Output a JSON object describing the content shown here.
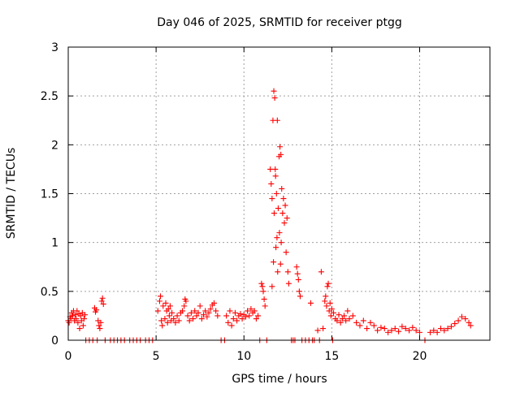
{
  "chart_data": {
    "type": "scatter",
    "title": "Day 046 of 2025, SRMTID for receiver ptgg",
    "xlabel": "GPS time / hours",
    "ylabel": "SRMTID / TECUs",
    "xlim": [
      0,
      24
    ],
    "ylim": [
      0,
      3
    ],
    "xticks": [
      0,
      5,
      10,
      15,
      20
    ],
    "yticks": [
      0,
      0.5,
      1,
      1.5,
      2,
      2.5,
      3
    ],
    "ytick_labels": [
      "0",
      "0.5",
      "1",
      "1.5",
      "2",
      "2.5",
      "3"
    ],
    "grid": true,
    "marker": "+",
    "series": [
      {
        "name": "SRMTID",
        "color": "#ff0000",
        "points": [
          [
            0.0,
            0.2
          ],
          [
            0.05,
            0.18
          ],
          [
            0.1,
            0.24
          ],
          [
            0.15,
            0.22
          ],
          [
            0.2,
            0.28
          ],
          [
            0.25,
            0.25
          ],
          [
            0.3,
            0.3
          ],
          [
            0.35,
            0.2
          ],
          [
            0.4,
            0.26
          ],
          [
            0.45,
            0.22
          ],
          [
            0.5,
            0.3
          ],
          [
            0.55,
            0.18
          ],
          [
            0.6,
            0.27
          ],
          [
            0.65,
            0.12
          ],
          [
            0.7,
            0.25
          ],
          [
            0.75,
            0.2
          ],
          [
            0.8,
            0.28
          ],
          [
            0.85,
            0.15
          ],
          [
            0.9,
            0.22
          ],
          [
            0.95,
            0.26
          ],
          [
            1.0,
            0.0
          ],
          [
            1.2,
            0.0
          ],
          [
            1.4,
            0.0
          ],
          [
            1.5,
            0.33
          ],
          [
            1.55,
            0.29
          ],
          [
            1.6,
            0.31
          ],
          [
            1.65,
            0.0
          ],
          [
            1.7,
            0.2
          ],
          [
            1.75,
            0.15
          ],
          [
            1.8,
            0.12
          ],
          [
            1.85,
            0.18
          ],
          [
            1.9,
            0.4
          ],
          [
            1.95,
            0.43
          ],
          [
            2.0,
            0.37
          ],
          [
            2.1,
            0.0
          ],
          [
            2.4,
            0.0
          ],
          [
            2.6,
            0.0
          ],
          [
            2.8,
            0.0
          ],
          [
            3.0,
            0.0
          ],
          [
            3.2,
            0.0
          ],
          [
            3.5,
            0.0
          ],
          [
            3.7,
            0.0
          ],
          [
            3.9,
            0.0
          ],
          [
            4.1,
            0.0
          ],
          [
            4.4,
            0.0
          ],
          [
            4.6,
            0.0
          ],
          [
            4.8,
            0.0
          ],
          [
            5.1,
            0.3
          ],
          [
            5.2,
            0.4
          ],
          [
            5.25,
            0.45
          ],
          [
            5.3,
            0.2
          ],
          [
            5.35,
            0.15
          ],
          [
            5.4,
            0.35
          ],
          [
            5.5,
            0.22
          ],
          [
            5.55,
            0.38
          ],
          [
            5.6,
            0.3
          ],
          [
            5.65,
            0.18
          ],
          [
            5.7,
            0.32
          ],
          [
            5.75,
            0.25
          ],
          [
            5.8,
            0.35
          ],
          [
            5.85,
            0.2
          ],
          [
            5.9,
            0.28
          ],
          [
            6.0,
            0.22
          ],
          [
            6.1,
            0.18
          ],
          [
            6.2,
            0.25
          ],
          [
            6.3,
            0.2
          ],
          [
            6.4,
            0.28
          ],
          [
            6.5,
            0.3
          ],
          [
            6.6,
            0.35
          ],
          [
            6.65,
            0.42
          ],
          [
            6.7,
            0.4
          ],
          [
            6.8,
            0.25
          ],
          [
            6.9,
            0.2
          ],
          [
            7.0,
            0.28
          ],
          [
            7.1,
            0.22
          ],
          [
            7.2,
            0.3
          ],
          [
            7.3,
            0.25
          ],
          [
            7.4,
            0.28
          ],
          [
            7.5,
            0.35
          ],
          [
            7.6,
            0.22
          ],
          [
            7.7,
            0.26
          ],
          [
            7.8,
            0.3
          ],
          [
            7.9,
            0.24
          ],
          [
            8.0,
            0.28
          ],
          [
            8.1,
            0.32
          ],
          [
            8.2,
            0.36
          ],
          [
            8.3,
            0.38
          ],
          [
            8.4,
            0.3
          ],
          [
            8.5,
            0.25
          ],
          [
            8.7,
            0.0
          ],
          [
            8.9,
            0.0
          ],
          [
            9.0,
            0.25
          ],
          [
            9.1,
            0.18
          ],
          [
            9.2,
            0.3
          ],
          [
            9.3,
            0.15
          ],
          [
            9.4,
            0.22
          ],
          [
            9.5,
            0.28
          ],
          [
            9.6,
            0.2
          ],
          [
            9.7,
            0.25
          ],
          [
            9.8,
            0.27
          ],
          [
            9.9,
            0.22
          ],
          [
            10.0,
            0.26
          ],
          [
            10.1,
            0.24
          ],
          [
            10.2,
            0.3
          ],
          [
            10.3,
            0.25
          ],
          [
            10.4,
            0.32
          ],
          [
            10.5,
            0.28
          ],
          [
            10.6,
            0.3
          ],
          [
            10.7,
            0.22
          ],
          [
            10.8,
            0.25
          ],
          [
            10.9,
            0.0
          ],
          [
            11.0,
            0.58
          ],
          [
            11.05,
            0.55
          ],
          [
            11.1,
            0.5
          ],
          [
            11.15,
            0.42
          ],
          [
            11.2,
            0.35
          ],
          [
            11.3,
            0.0
          ],
          [
            11.5,
            1.75
          ],
          [
            11.55,
            1.6
          ],
          [
            11.6,
            1.45
          ],
          [
            11.6,
            0.55
          ],
          [
            11.65,
            2.25
          ],
          [
            11.68,
            0.8
          ],
          [
            11.7,
            2.55
          ],
          [
            11.72,
            1.3
          ],
          [
            11.75,
            2.48
          ],
          [
            11.78,
            1.75
          ],
          [
            11.8,
            1.68
          ],
          [
            11.82,
            0.95
          ],
          [
            11.85,
            1.5
          ],
          [
            11.88,
            1.05
          ],
          [
            11.9,
            2.25
          ],
          [
            11.92,
            0.7
          ],
          [
            11.95,
            1.35
          ],
          [
            12.0,
            1.88
          ],
          [
            12.02,
            1.1
          ],
          [
            12.05,
            1.98
          ],
          [
            12.08,
            0.78
          ],
          [
            12.1,
            1.9
          ],
          [
            12.12,
            1.0
          ],
          [
            12.15,
            1.55
          ],
          [
            12.2,
            1.3
          ],
          [
            12.25,
            1.45
          ],
          [
            12.3,
            1.2
          ],
          [
            12.35,
            1.38
          ],
          [
            12.4,
            0.9
          ],
          [
            12.45,
            1.25
          ],
          [
            12.5,
            0.7
          ],
          [
            12.55,
            0.58
          ],
          [
            12.7,
            0.0
          ],
          [
            12.8,
            0.0
          ],
          [
            12.9,
            0.0
          ],
          [
            13.0,
            0.75
          ],
          [
            13.05,
            0.68
          ],
          [
            13.1,
            0.62
          ],
          [
            13.15,
            0.5
          ],
          [
            13.2,
            0.45
          ],
          [
            13.3,
            0.0
          ],
          [
            13.5,
            0.0
          ],
          [
            13.7,
            0.0
          ],
          [
            13.8,
            0.38
          ],
          [
            13.9,
            0.0
          ],
          [
            14.0,
            0.0
          ],
          [
            14.2,
            0.1
          ],
          [
            14.3,
            0.0
          ],
          [
            14.4,
            0.7
          ],
          [
            14.5,
            0.12
          ],
          [
            14.6,
            0.4
          ],
          [
            14.65,
            0.45
          ],
          [
            14.7,
            0.35
          ],
          [
            14.75,
            0.55
          ],
          [
            14.8,
            0.58
          ],
          [
            14.85,
            0.3
          ],
          [
            14.9,
            0.38
          ],
          [
            14.95,
            0.25
          ],
          [
            15.0,
            0.32
          ],
          [
            15.05,
            0.0
          ],
          [
            15.1,
            0.28
          ],
          [
            15.2,
            0.22
          ],
          [
            15.3,
            0.2
          ],
          [
            15.4,
            0.26
          ],
          [
            15.5,
            0.18
          ],
          [
            15.6,
            0.22
          ],
          [
            15.7,
            0.25
          ],
          [
            15.8,
            0.2
          ],
          [
            15.9,
            0.3
          ],
          [
            16.0,
            0.22
          ],
          [
            16.2,
            0.25
          ],
          [
            16.4,
            0.18
          ],
          [
            16.6,
            0.15
          ],
          [
            16.8,
            0.2
          ],
          [
            17.0,
            0.12
          ],
          [
            17.2,
            0.18
          ],
          [
            17.4,
            0.15
          ],
          [
            17.6,
            0.1
          ],
          [
            17.8,
            0.13
          ],
          [
            18.0,
            0.12
          ],
          [
            18.2,
            0.08
          ],
          [
            18.4,
            0.1
          ],
          [
            18.6,
            0.12
          ],
          [
            18.8,
            0.09
          ],
          [
            19.0,
            0.14
          ],
          [
            19.2,
            0.12
          ],
          [
            19.4,
            0.1
          ],
          [
            19.6,
            0.13
          ],
          [
            19.8,
            0.1
          ],
          [
            20.0,
            0.08
          ],
          [
            20.3,
            0.0
          ],
          [
            20.6,
            0.08
          ],
          [
            20.8,
            0.1
          ],
          [
            21.0,
            0.08
          ],
          [
            21.2,
            0.12
          ],
          [
            21.4,
            0.1
          ],
          [
            21.6,
            0.12
          ],
          [
            21.8,
            0.14
          ],
          [
            22.0,
            0.17
          ],
          [
            22.2,
            0.2
          ],
          [
            22.4,
            0.24
          ],
          [
            22.6,
            0.22
          ],
          [
            22.8,
            0.18
          ],
          [
            22.9,
            0.15
          ]
        ]
      }
    ]
  }
}
